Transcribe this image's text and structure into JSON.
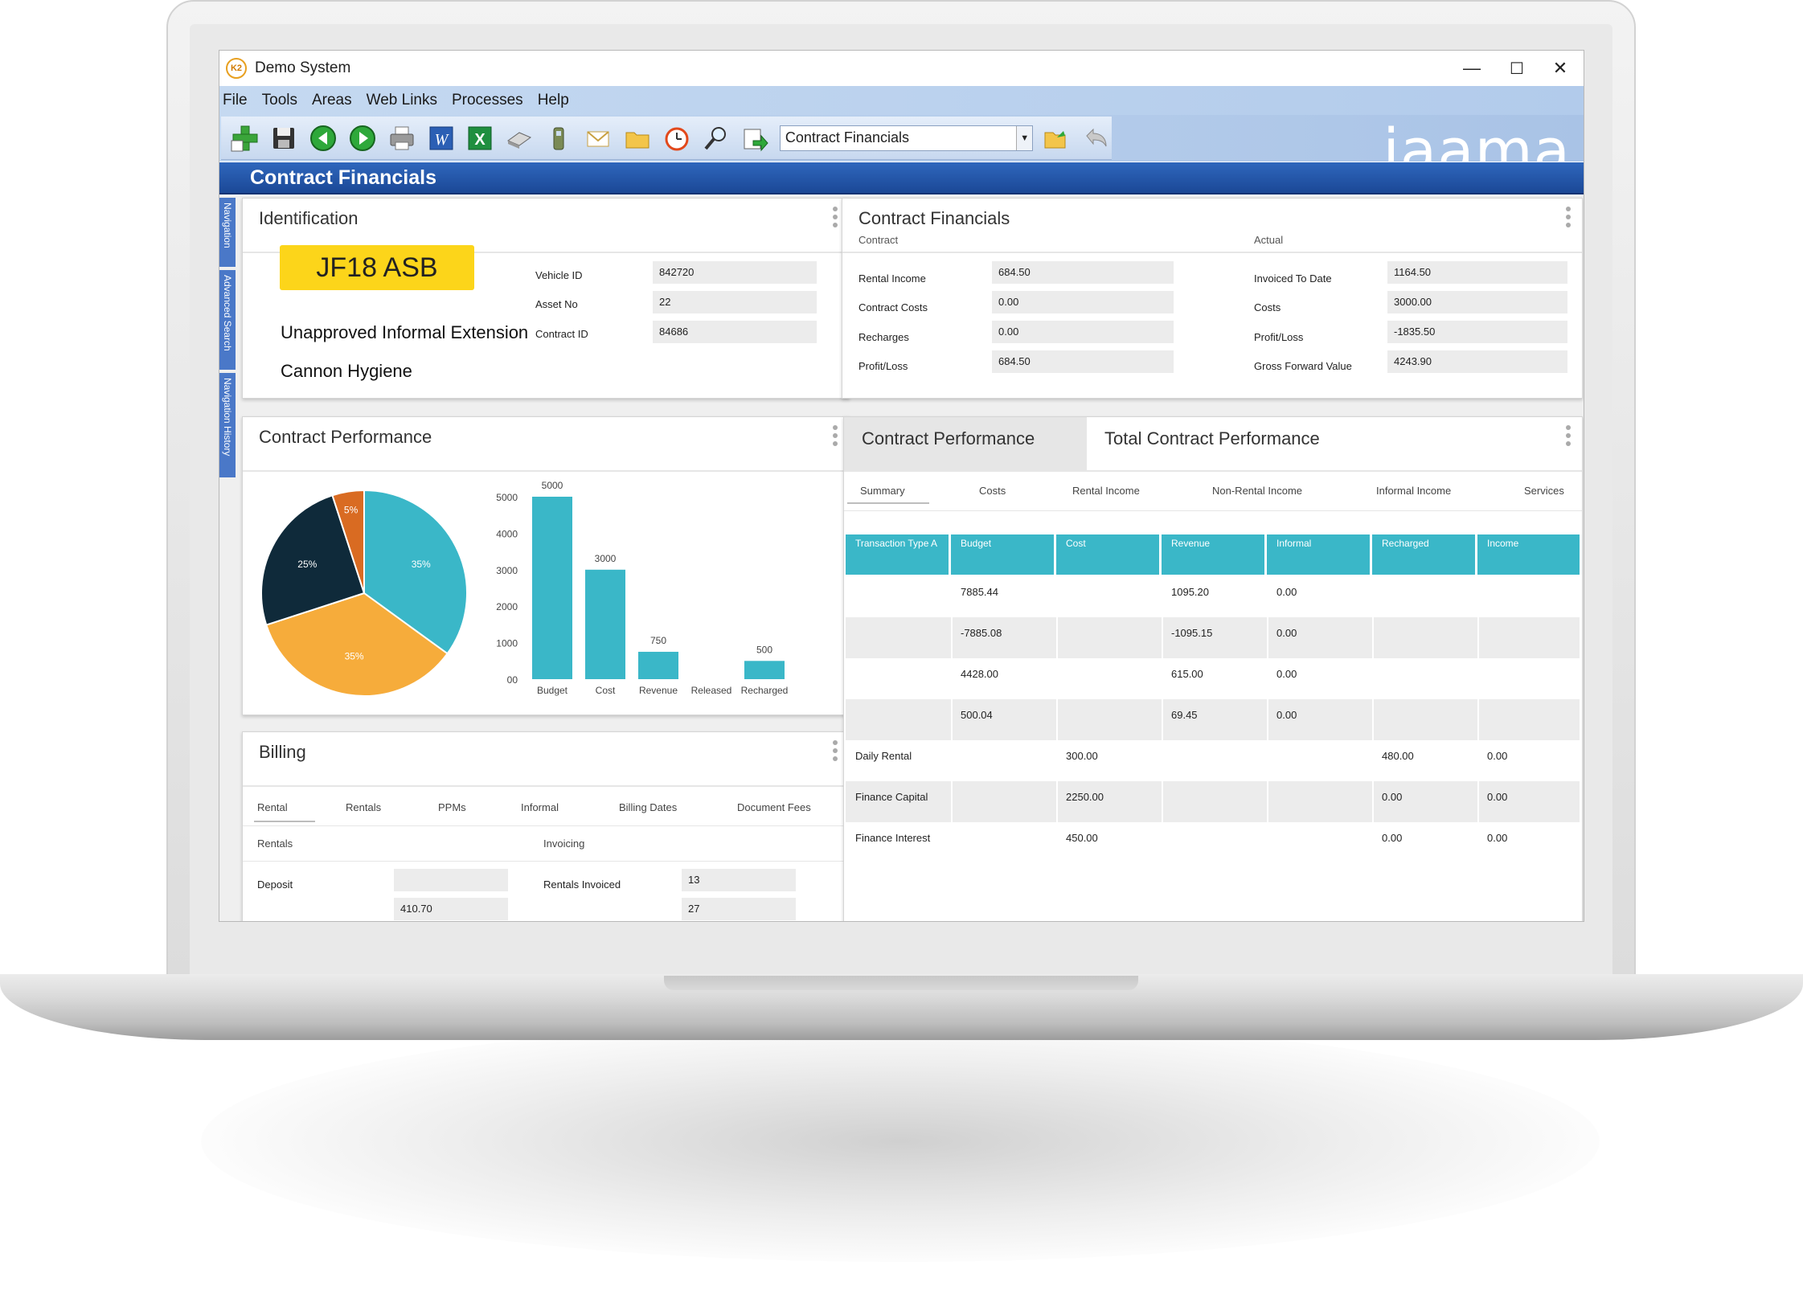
{
  "window": {
    "app_title": "Demo System",
    "minimize": "—",
    "maximize": "☐",
    "close": "✕",
    "logo_text": "K2"
  },
  "menu": [
    "File",
    "Tools",
    "Areas",
    "Web Links",
    "Processes",
    "Help"
  ],
  "toolbar": {
    "icons": [
      "add-icon",
      "save-icon",
      "back-icon",
      "forward-icon",
      "print-icon",
      "word-icon",
      "excel-icon",
      "scanner-icon",
      "phone-icon",
      "mail-icon",
      "folder-icon",
      "clock-icon",
      "search-icon",
      "export-icon"
    ],
    "combo_value": "Contract Financials",
    "after_icons": [
      "folder-open-icon",
      "undo-icon"
    ]
  },
  "brand": "jaama",
  "page_title": "Contract Financials",
  "side_tabs": [
    "Navigation",
    "Advanced Search",
    "Navigation History"
  ],
  "identification": {
    "title": "Identification",
    "plate": "JF18 ASB",
    "status": "Unapproved Informal Extension",
    "customer": "Cannon Hygiene",
    "fields": [
      {
        "label": "Vehicle ID",
        "value": "842720"
      },
      {
        "label": "Asset No",
        "value": "22"
      },
      {
        "label": "Contract ID",
        "value": "84686"
      }
    ]
  },
  "contract_financials": {
    "title": "Contract Financials",
    "contract_heading": "Contract",
    "actual_heading": "Actual",
    "contract": [
      {
        "label": "Rental Income",
        "value": "684.50"
      },
      {
        "label": "Contract Costs",
        "value": "0.00"
      },
      {
        "label": "Recharges",
        "value": "0.00"
      },
      {
        "label": "Profit/Loss",
        "value": "684.50"
      }
    ],
    "actual": [
      {
        "label": "Invoiced To Date",
        "value": "1164.50"
      },
      {
        "label": "Costs",
        "value": "3000.00"
      },
      {
        "label": "Profit/Loss",
        "value": "-1835.50"
      },
      {
        "label": "Gross Forward Value",
        "value": "4243.90"
      }
    ]
  },
  "performance": {
    "title": "Contract Performance",
    "pie": {
      "labels": [
        "35%",
        "35%",
        "25%",
        "5%"
      ],
      "colors": [
        "#3ab7c8",
        "#f6ac3b",
        "#0f2a3a",
        "#d96b22"
      ]
    },
    "bar_labels": {
      "budget": "5000",
      "cost": "3000",
      "revenue": "750",
      "recharged": "500"
    }
  },
  "chart_data": [
    {
      "type": "pie",
      "slices": [
        {
          "label": "35%",
          "value": 35,
          "color": "#3ab7c8"
        },
        {
          "label": "35%",
          "value": 35,
          "color": "#f6ac3b"
        },
        {
          "label": "25%",
          "value": 25,
          "color": "#0f2a3a"
        },
        {
          "label": "5%",
          "value": 5,
          "color": "#d96b22"
        }
      ]
    },
    {
      "type": "bar",
      "categories": [
        "Budget",
        "Cost",
        "Revenue",
        "Released",
        "Recharged"
      ],
      "values": [
        5000,
        3000,
        750,
        0,
        500
      ],
      "data_labels": [
        "5000",
        "3000",
        "750",
        "",
        "500"
      ],
      "yticks": [
        "00",
        "1000",
        "2000",
        "3000",
        "4000",
        "5000"
      ],
      "ylim": [
        0,
        5000
      ],
      "color": "#3ab7c8",
      "grid": false
    }
  ],
  "billing": {
    "title": "Billing",
    "tabs": [
      "Rental",
      "Rentals",
      "PPMs",
      "Informal",
      "Billing Dates",
      "Document Fees"
    ],
    "section_left": "Rentals",
    "section_right": "Invoicing",
    "deposit_label": "Deposit",
    "deposit_value": "",
    "rentals_invoiced_label": "Rentals Invoiced",
    "rentals_invoiced_value": "13",
    "cut_left_value": "410.70",
    "cut_right_value": "27"
  },
  "total_performance": {
    "tab_inactive": "Contract Performance",
    "tab_active": "Total Contract Performance",
    "subtabs": [
      "Summary",
      "Costs",
      "Rental Income",
      "Non-Rental Income",
      "Informal Income",
      "Services"
    ],
    "headers": [
      "Transaction Type A",
      "Budget",
      "Cost",
      "Revenue",
      "Informal",
      "Recharged",
      "Income"
    ],
    "rows": [
      [
        "",
        "7885.44",
        "",
        "1095.20",
        "0.00",
        "",
        ""
      ],
      [
        "",
        "-7885.08",
        "",
        "-1095.15",
        "0.00",
        "",
        ""
      ],
      [
        "",
        "4428.00",
        "",
        "615.00",
        "0.00",
        "",
        ""
      ],
      [
        "",
        "500.04",
        "",
        "69.45",
        "0.00",
        "",
        ""
      ],
      [
        "Daily Rental",
        "",
        "300.00",
        "",
        "",
        "480.00",
        "0.00"
      ],
      [
        "Finance Capital",
        "",
        "2250.00",
        "",
        "",
        "0.00",
        "0.00"
      ],
      [
        "Finance Interest",
        "",
        "450.00",
        "",
        "",
        "0.00",
        "0.00"
      ]
    ]
  }
}
